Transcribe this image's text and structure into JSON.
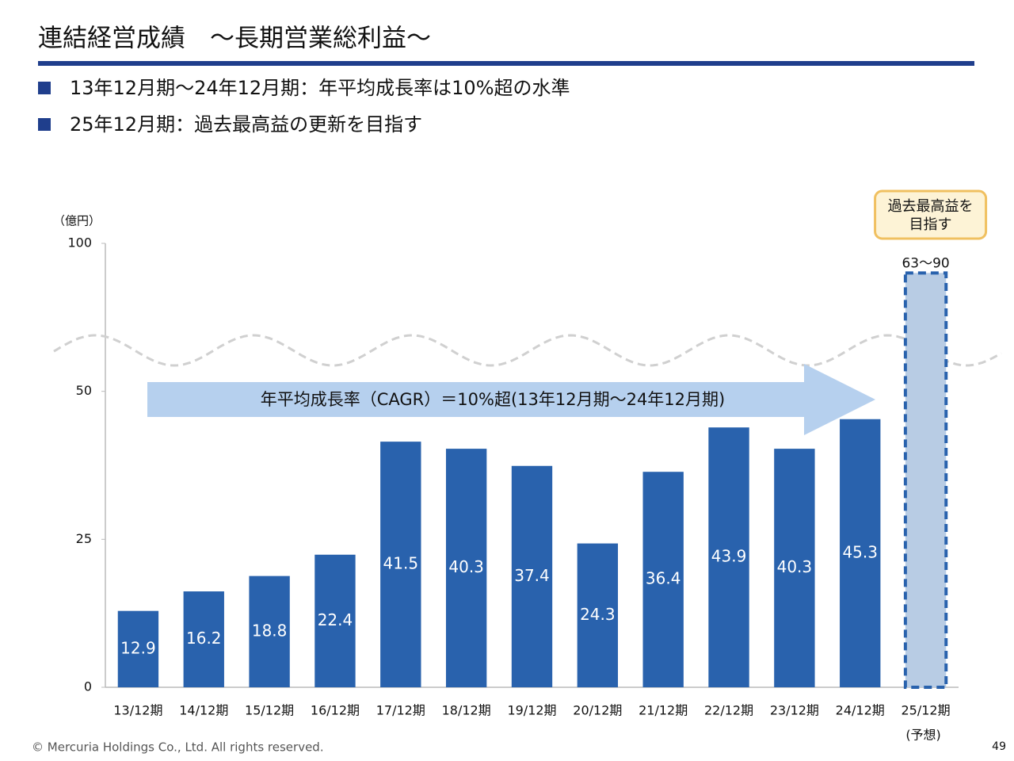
{
  "header": {
    "title": "連結経営成績　～長期営業総利益～"
  },
  "bullets": [
    "13年12月期～24年12月期：年平均成長率は10%超の水準",
    "25年12月期：過去最高益の更新を目指す"
  ],
  "chart_data": {
    "type": "bar",
    "unit_label": "（億円）",
    "categories": [
      "13/12期",
      "14/12期",
      "15/12期",
      "16/12期",
      "17/12期",
      "18/12期",
      "19/12期",
      "20/12期",
      "21/12期",
      "22/12期",
      "23/12期",
      "24/12期"
    ],
    "values": [
      12.9,
      16.2,
      18.8,
      22.4,
      41.5,
      40.3,
      37.4,
      24.3,
      36.4,
      43.9,
      40.3,
      45.3
    ],
    "color": "#2962ad",
    "forecast": {
      "category": "25/12期",
      "sublabel": "(予想)",
      "low": 63,
      "high": 90,
      "label": "63～90",
      "color": "#b8cce4"
    },
    "callout": [
      "過去最高益を",
      "目指す"
    ],
    "annotation": "年平均成長率（CAGR）＝10%超(13年12月期～24年12月期)",
    "ylim": [
      0,
      100
    ],
    "yticks": [
      0,
      25,
      50,
      100
    ],
    "axis_break": true
  },
  "footer": {
    "copyright": "© Mercuria Holdings Co., Ltd. All rights reserved.",
    "page": "49"
  }
}
